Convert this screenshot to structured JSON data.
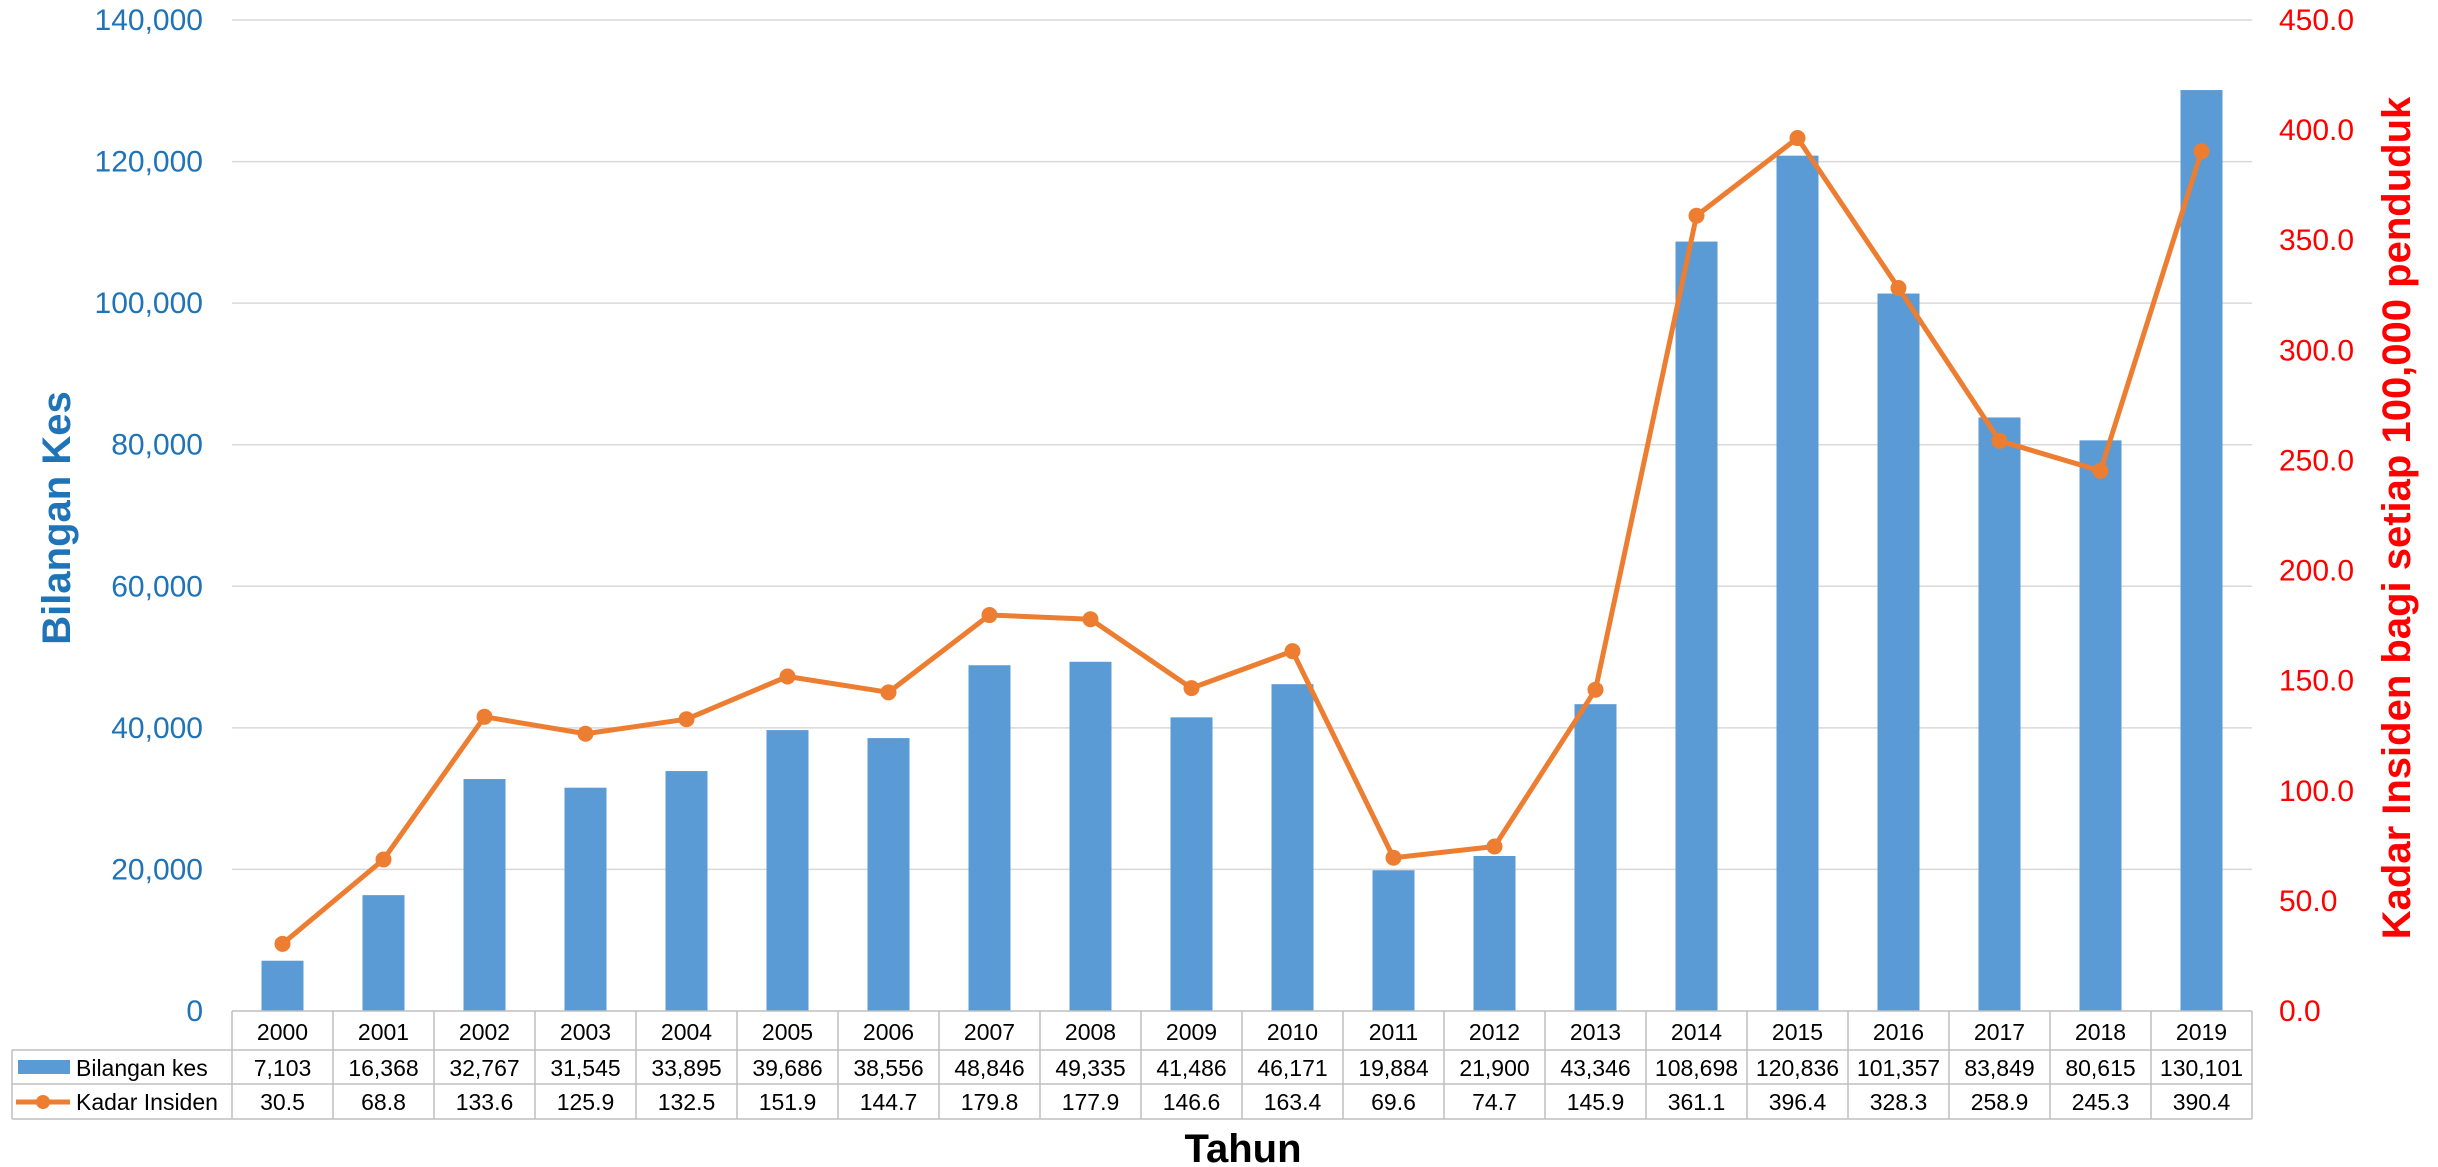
{
  "chart_data": {
    "type": "bar",
    "xlabel": "Tahun",
    "ylabel_left": "Bilangan Kes",
    "ylabel_right": "Kadar Insiden bagi setiap 100,000 penduduk",
    "ylim_left": [
      0,
      140000
    ],
    "ylim_right": [
      0,
      450
    ],
    "ticks_left": [
      "0",
      "20,000",
      "40,000",
      "60,000",
      "80,000",
      "100,000",
      "120,000",
      "140,000"
    ],
    "ticks_right": [
      "0.0",
      "50.0",
      "100.0",
      "150.0",
      "200.0",
      "250.0",
      "300.0",
      "350.0",
      "400.0",
      "450.0"
    ],
    "grid": true,
    "data_table": true,
    "categories": [
      "2000",
      "2001",
      "2002",
      "2003",
      "2004",
      "2005",
      "2006",
      "2007",
      "2008",
      "2009",
      "2010",
      "2011",
      "2012",
      "2013",
      "2014",
      "2015",
      "2016",
      "2017",
      "2018",
      "2019"
    ],
    "series": [
      {
        "name": "Bilangan kes",
        "type": "bar",
        "axis": "left",
        "color": "#5b9bd5",
        "values": [
          7103,
          16368,
          32767,
          31545,
          33895,
          39686,
          38556,
          48846,
          49335,
          41486,
          46171,
          19884,
          21900,
          43346,
          108698,
          120836,
          101357,
          83849,
          80615,
          130101
        ],
        "labels": [
          "7,103",
          "16,368",
          "32,767",
          "31,545",
          "33,895",
          "39,686",
          "38,556",
          "48,846",
          "49,335",
          "41,486",
          "46,171",
          "19,884",
          "21,900",
          "43,346",
          "108,698",
          "120,836",
          "101,357",
          "83,849",
          "80,615",
          "130,101"
        ]
      },
      {
        "name": "Kadar Insiden",
        "type": "line",
        "axis": "right",
        "color": "#ed7d31",
        "values": [
          30.5,
          68.8,
          133.6,
          125.9,
          132.5,
          151.9,
          144.7,
          179.8,
          177.9,
          146.6,
          163.4,
          69.6,
          74.7,
          145.9,
          361.1,
          396.4,
          328.3,
          258.9,
          245.3,
          390.4
        ],
        "labels": [
          "30.5",
          "68.8",
          "133.6",
          "125.9",
          "132.5",
          "151.9",
          "144.7",
          "179.8",
          "177.9",
          "146.6",
          "163.4",
          "69.6",
          "74.7",
          "145.9",
          "361.1",
          "396.4",
          "328.3",
          "258.9",
          "245.3",
          "390.4"
        ]
      }
    ]
  }
}
